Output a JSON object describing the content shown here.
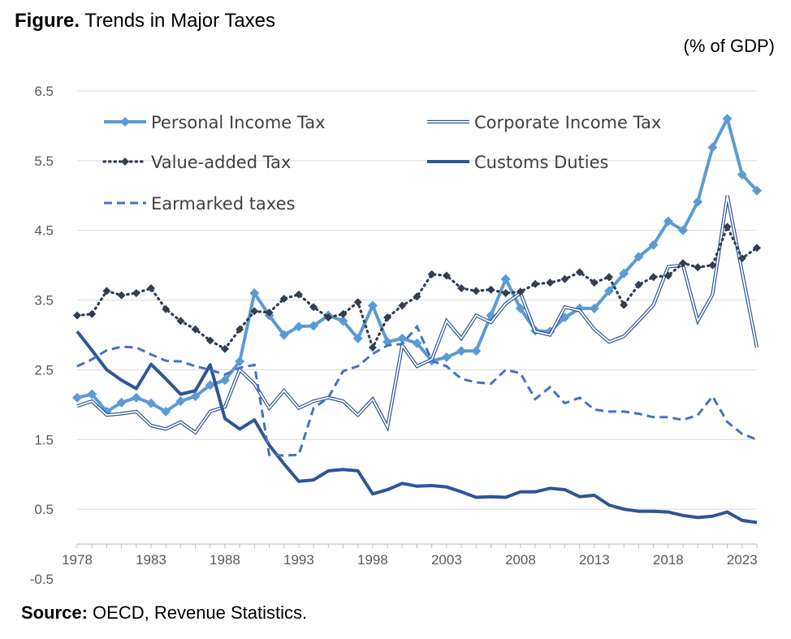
{
  "title_bold": "Figure.",
  "title_rest": "Trends in Major Taxes",
  "unit": "(% of GDP)",
  "source_bold": "Source:",
  "source_rest": "OECD, Revenue Statistics.",
  "chart_data": {
    "type": "line",
    "title": "Trends in Major Taxes",
    "ylabel": "(% of GDP)",
    "xlabel": "",
    "ylim": [
      -0.5,
      6.5
    ],
    "xlim": [
      1978,
      2024
    ],
    "yticks": [
      6.5,
      5.5,
      4.5,
      3.5,
      2.5,
      1.5,
      0.5,
      -0.5
    ],
    "xticks": [
      1978,
      1983,
      1988,
      1993,
      1998,
      2003,
      2008,
      2013,
      2018,
      2023
    ],
    "grid": "horizontal",
    "legend_placement": "top-left",
    "x": [
      1978,
      1979,
      1980,
      1981,
      1982,
      1983,
      1984,
      1985,
      1986,
      1987,
      1988,
      1989,
      1990,
      1991,
      1992,
      1993,
      1994,
      1995,
      1996,
      1997,
      1998,
      1999,
      2000,
      2001,
      2002,
      2003,
      2004,
      2005,
      2006,
      2007,
      2008,
      2009,
      2010,
      2011,
      2012,
      2013,
      2014,
      2015,
      2016,
      2017,
      2018,
      2019,
      2020,
      2021,
      2022,
      2023,
      2024
    ],
    "series": [
      {
        "name": "Personal Income Tax",
        "color": "#5B9BD5",
        "style": "solid-diamond",
        "values": [
          2.1,
          2.15,
          1.9,
          2.03,
          2.1,
          2.02,
          1.9,
          2.05,
          2.12,
          2.28,
          2.35,
          2.62,
          3.6,
          3.28,
          3.0,
          3.12,
          3.13,
          3.28,
          3.2,
          2.95,
          3.42,
          2.9,
          2.95,
          2.88,
          2.63,
          2.68,
          2.77,
          2.77,
          3.28,
          3.8,
          3.38,
          3.06,
          3.05,
          3.25,
          3.38,
          3.38,
          3.63,
          3.88,
          4.12,
          4.29,
          4.63,
          4.5,
          4.91,
          5.69,
          6.1,
          5.3,
          5.07
        ]
      },
      {
        "name": "Corporate Income Tax",
        "color": "#2F5597",
        "style": "double",
        "values": [
          1.98,
          2.05,
          1.85,
          1.87,
          1.9,
          1.7,
          1.65,
          1.75,
          1.6,
          1.9,
          1.97,
          2.5,
          2.3,
          1.95,
          2.2,
          1.95,
          2.05,
          2.1,
          2.05,
          1.85,
          2.08,
          1.68,
          2.85,
          2.55,
          2.65,
          3.2,
          2.95,
          3.28,
          3.18,
          3.45,
          3.6,
          3.05,
          3.0,
          3.4,
          3.35,
          3.08,
          2.9,
          2.98,
          3.2,
          3.43,
          3.98,
          4.0,
          3.2,
          3.58,
          5.0,
          3.9,
          2.82
        ]
      },
      {
        "name": "Value-added Tax",
        "color": "#333F50",
        "style": "dotted-diamond",
        "values": [
          3.28,
          3.3,
          3.63,
          3.57,
          3.6,
          3.67,
          3.37,
          3.2,
          3.08,
          2.92,
          2.8,
          3.08,
          3.34,
          3.32,
          3.52,
          3.58,
          3.4,
          3.25,
          3.3,
          3.47,
          2.82,
          3.25,
          3.42,
          3.55,
          3.87,
          3.85,
          3.67,
          3.63,
          3.65,
          3.6,
          3.62,
          3.73,
          3.75,
          3.8,
          3.9,
          3.75,
          3.83,
          3.43,
          3.72,
          3.83,
          3.85,
          4.03,
          3.97,
          4.0,
          4.55,
          4.1,
          4.25
        ]
      },
      {
        "name": "Customs Duties",
        "color": "#2F5597",
        "style": "solid-thick",
        "values": [
          3.05,
          2.78,
          2.5,
          2.35,
          2.23,
          2.58,
          2.37,
          2.15,
          2.2,
          2.57,
          1.8,
          1.65,
          1.78,
          1.42,
          1.15,
          0.9,
          0.92,
          1.05,
          1.07,
          1.05,
          0.72,
          0.78,
          0.87,
          0.83,
          0.84,
          0.82,
          0.75,
          0.67,
          0.68,
          0.67,
          0.75,
          0.75,
          0.8,
          0.78,
          0.68,
          0.7,
          0.56,
          0.5,
          0.47,
          0.47,
          0.46,
          0.41,
          0.38,
          0.4,
          0.46,
          0.34,
          0.31
        ]
      },
      {
        "name": "Earmarked taxes",
        "color": "#4472C4",
        "style": "dashed",
        "values": [
          2.55,
          2.65,
          2.78,
          2.83,
          2.82,
          2.72,
          2.63,
          2.62,
          2.55,
          2.5,
          2.43,
          2.53,
          2.57,
          1.28,
          1.27,
          1.28,
          1.95,
          2.1,
          2.48,
          2.55,
          2.73,
          2.85,
          2.87,
          3.12,
          2.63,
          2.55,
          2.37,
          2.32,
          2.3,
          2.5,
          2.45,
          2.08,
          2.25,
          2.02,
          2.1,
          1.93,
          1.9,
          1.9,
          1.87,
          1.82,
          1.82,
          1.78,
          1.85,
          2.12,
          1.75,
          1.58,
          1.5
        ]
      }
    ]
  }
}
